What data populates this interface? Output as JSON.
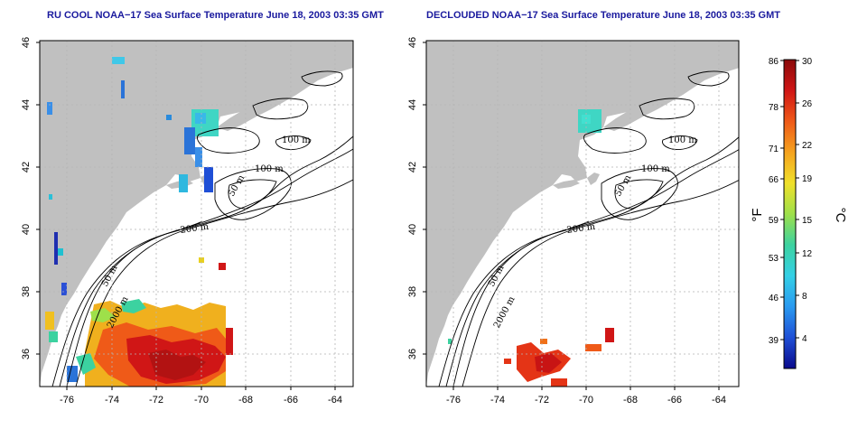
{
  "panels": [
    {
      "title": "RU COOL NOAA−17 Sea Surface Temperature June 18, 2003 03:35 GMT",
      "contour_labels": [
        "100 m",
        "100 m",
        "50 m",
        "200 m",
        "50 m",
        "2000 m"
      ]
    },
    {
      "title": "DECLOUDED NOAA−17 Sea Surface Temperature June 18, 2003 03:35 GMT",
      "contour_labels": [
        "100 m",
        "100 m",
        "50 m",
        "200 m",
        "50 m",
        "2000 m"
      ]
    }
  ],
  "axes": {
    "lon_ticks": [
      "-76",
      "-74",
      "-72",
      "-70",
      "-68",
      "-66",
      "-64"
    ],
    "lat_ticks": [
      "46",
      "44",
      "42",
      "40",
      "38",
      "36"
    ]
  },
  "colorbar": {
    "fahrenheit_ticks": [
      "86",
      "78",
      "71",
      "66",
      "59",
      "53",
      "46",
      "39"
    ],
    "celsius_ticks": [
      "30",
      "26",
      "22",
      "19",
      "15",
      "12",
      "8",
      "4"
    ],
    "fahrenheit_unit": "°F",
    "celsius_unit": "°C",
    "colors": [
      "#0a0a8c",
      "#1f4fd6",
      "#2a9af0",
      "#34d0e6",
      "#3cd2a0",
      "#9ee04a",
      "#f0e02a",
      "#f5a21e",
      "#ef5a18",
      "#d01616",
      "#8a0a0a"
    ]
  },
  "colors": {
    "land": "#c0c0c0",
    "frame": "#000000",
    "grid": "#b4b4b4",
    "title": "#1a1a9e"
  }
}
